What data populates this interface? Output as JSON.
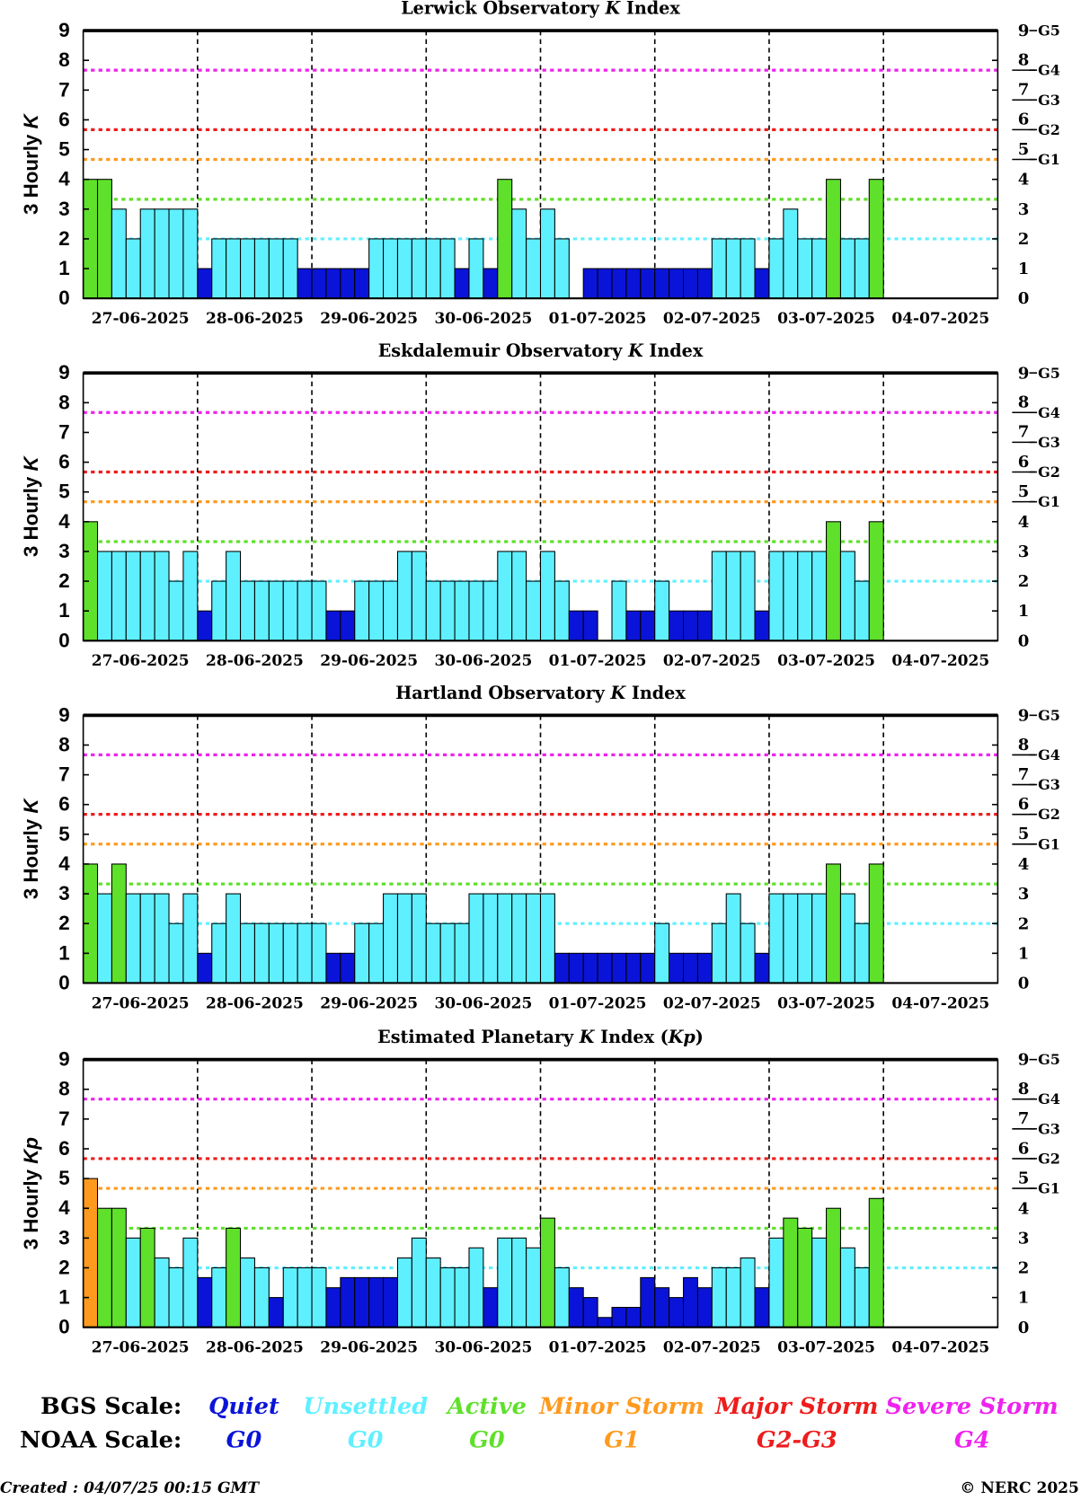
{
  "chart_data": [
    {
      "type": "bar",
      "title": [
        "Lerwick Observatory ",
        "K",
        " Index"
      ],
      "y_label": [
        "3 Hourly ",
        "K"
      ],
      "values": [
        4,
        4,
        3,
        2,
        3,
        3,
        3,
        3,
        1,
        2,
        2,
        2,
        2,
        2,
        2,
        1,
        1,
        1,
        1,
        1,
        2,
        2,
        2,
        2,
        2,
        2,
        1,
        2,
        1,
        4,
        3,
        2,
        3,
        2,
        null,
        1,
        1,
        1,
        1,
        1,
        1,
        1,
        1,
        1,
        2,
        2,
        2,
        1,
        2,
        3,
        2,
        2,
        4,
        2,
        2,
        4,
        null,
        null,
        null,
        null,
        null,
        null,
        null,
        null
      ]
    },
    {
      "type": "bar",
      "title": [
        "Eskdalemuir Observatory ",
        "K",
        " Index"
      ],
      "y_label": [
        "3 Hourly ",
        "K"
      ],
      "values": [
        4,
        3,
        3,
        3,
        3,
        3,
        2,
        3,
        1,
        2,
        3,
        2,
        2,
        2,
        2,
        2,
        2,
        1,
        1,
        2,
        2,
        2,
        3,
        3,
        2,
        2,
        2,
        2,
        2,
        3,
        3,
        2,
        3,
        2,
        1,
        1,
        null,
        2,
        1,
        1,
        2,
        1,
        1,
        1,
        3,
        3,
        3,
        1,
        3,
        3,
        3,
        3,
        4,
        3,
        2,
        4,
        null,
        null,
        null,
        null,
        null,
        null,
        null,
        null
      ]
    },
    {
      "type": "bar",
      "title": [
        "Hartland Observatory ",
        "K",
        " Index"
      ],
      "y_label": [
        "3 Hourly ",
        "K"
      ],
      "values": [
        4,
        3,
        4,
        3,
        3,
        3,
        2,
        3,
        1,
        2,
        3,
        2,
        2,
        2,
        2,
        2,
        2,
        1,
        1,
        2,
        2,
        3,
        3,
        3,
        2,
        2,
        2,
        3,
        3,
        3,
        3,
        3,
        3,
        1,
        1,
        1,
        1,
        1,
        1,
        1,
        2,
        1,
        1,
        1,
        2,
        3,
        2,
        1,
        3,
        3,
        3,
        3,
        4,
        3,
        2,
        4,
        null,
        null,
        null,
        null,
        null,
        null,
        null,
        null
      ]
    },
    {
      "type": "bar",
      "title": [
        "Estimated Planetary ",
        "K",
        " Index (",
        "Kp",
        ")"
      ],
      "y_label": [
        "3 Hourly ",
        "Kp"
      ],
      "values": [
        5,
        4,
        4,
        3,
        3.33,
        2.33,
        2,
        3,
        1.67,
        2,
        3.33,
        2.33,
        2,
        1,
        2,
        2,
        2,
        1.33,
        1.67,
        1.67,
        1.67,
        1.67,
        2.33,
        3,
        2.33,
        2,
        2,
        2.67,
        1.33,
        3,
        3,
        2.67,
        3.67,
        2,
        1.33,
        1,
        0.33,
        0.67,
        0.67,
        1.67,
        1.33,
        1,
        1.67,
        1.33,
        2,
        2,
        2.33,
        1.33,
        3,
        3.67,
        3.33,
        3,
        4,
        2.67,
        2,
        4.33,
        null,
        null,
        null,
        null,
        null,
        null,
        null,
        null
      ]
    }
  ],
  "axes": {
    "days": [
      "27-06-2025",
      "28-06-2025",
      "29-06-2025",
      "30-06-2025",
      "01-07-2025",
      "02-07-2025",
      "03-07-2025",
      "04-07-2025"
    ],
    "ylim": [
      0,
      9
    ],
    "yticks": [
      0,
      1,
      2,
      3,
      4,
      5,
      6,
      7,
      8,
      9
    ],
    "y2ticks": [
      0,
      1,
      2,
      3,
      4,
      {
        "value": 4.67,
        "label": "5"
      },
      {
        "value": 5.67,
        "label": "6"
      },
      {
        "value": 6.67,
        "label": "7"
      },
      {
        "value": 7.67,
        "label": "8"
      },
      9
    ],
    "noaa_ticks": [
      {
        "value": 4.67,
        "label": "G1"
      },
      {
        "value": 5.67,
        "label": "G2"
      },
      {
        "value": 6.67,
        "label": "G3"
      },
      {
        "value": 7.67,
        "label": "G4"
      },
      {
        "value": 9,
        "label": "G5"
      }
    ],
    "levels": [
      2,
      3.33,
      4.67,
      5.67,
      7.67
    ]
  },
  "legend": {
    "bgs_label": "BGS Scale:",
    "noaa_label": "NOAA Scale:",
    "items": [
      {
        "name": "Quiet",
        "noaa": "G0",
        "color": "#0a14d8"
      },
      {
        "name": "Unsettled",
        "noaa": "G0",
        "color": "#5ff0ff"
      },
      {
        "name": "Active",
        "noaa": "G0",
        "color": "#5fe02a"
      },
      {
        "name": "Minor Storm",
        "noaa": "G1",
        "color": "#ff9a1f"
      },
      {
        "name": "Major Storm",
        "noaa": "G2-G3",
        "color": "#ee1c1c"
      },
      {
        "name": "Severe Storm",
        "noaa": "G4",
        "color": "#ee22ee"
      }
    ]
  },
  "footer": {
    "created": "Created : 04/07/25 00:15 GMT",
    "copyright": "© NERC 2025"
  }
}
